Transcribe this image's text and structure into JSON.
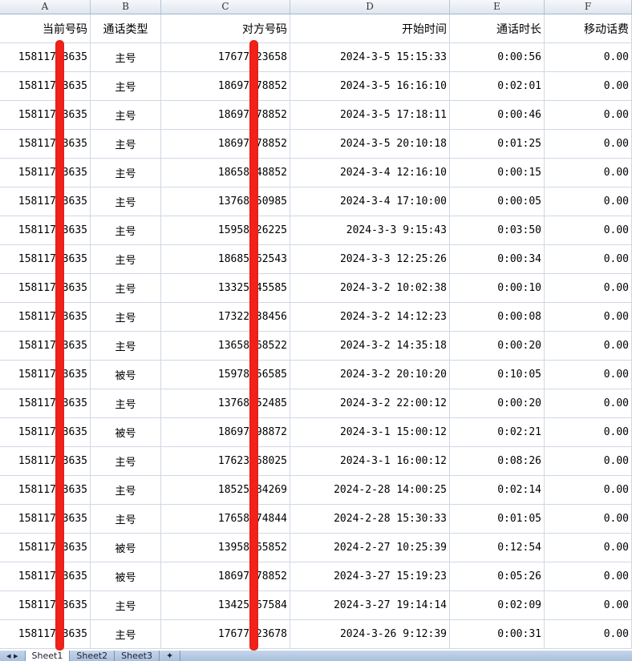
{
  "columns": [
    "A",
    "B",
    "C",
    "D",
    "E",
    "F"
  ],
  "headers": [
    "当前号码",
    "通话类型",
    "对方号码",
    "开始时间",
    "通话时长",
    "移动话费"
  ],
  "rows": [
    [
      "15811753635",
      "主号",
      "17677123658",
      "2024-3-5 15:15:33",
      "0:00:56",
      "0.00"
    ],
    [
      "15811753635",
      "主号",
      "18697378852",
      "2024-3-5 16:16:10",
      "0:02:01",
      "0.00"
    ],
    [
      "15811753635",
      "主号",
      "18697378852",
      "2024-3-5 17:18:11",
      "0:00:46",
      "0.00"
    ],
    [
      "15811753635",
      "主号",
      "18697378852",
      "2024-3-5 20:10:18",
      "0:01:25",
      "0.00"
    ],
    [
      "15811753635",
      "主号",
      "18658548852",
      "2024-3-4 12:16:10",
      "0:00:15",
      "0.00"
    ],
    [
      "15811753635",
      "主号",
      "13768250985",
      "2024-3-4 17:10:00",
      "0:00:05",
      "0.00"
    ],
    [
      "15811753635",
      "主号",
      "15958426225",
      "2024-3-3 9:15:43",
      "0:03:50",
      "0.00"
    ],
    [
      "15811753635",
      "主号",
      "18685562543",
      "2024-3-3 12:25:26",
      "0:00:34",
      "0.00"
    ],
    [
      "15811753635",
      "主号",
      "13325545585",
      "2024-3-2 10:02:38",
      "0:00:10",
      "0.00"
    ],
    [
      "15811753635",
      "主号",
      "17322538456",
      "2024-3-2 14:12:23",
      "0:00:08",
      "0.00"
    ],
    [
      "15811753635",
      "主号",
      "13658568522",
      "2024-3-2 14:35:18",
      "0:00:20",
      "0.00"
    ],
    [
      "15811753635",
      "被号",
      "15978156585",
      "2024-3-2 20:10:20",
      "0:10:05",
      "0.00"
    ],
    [
      "15811753635",
      "主号",
      "13768252485",
      "2024-3-2 22:00:12",
      "0:00:20",
      "0.00"
    ],
    [
      "15811753635",
      "被号",
      "18697898872",
      "2024-3-1 15:00:12",
      "0:02:21",
      "0.00"
    ],
    [
      "15811753635",
      "主号",
      "17623568025",
      "2024-3-1 16:00:12",
      "0:08:26",
      "0.00"
    ],
    [
      "15811753635",
      "主号",
      "18525584269",
      "2024-2-28 14:00:25",
      "0:02:14",
      "0.00"
    ],
    [
      "15811753635",
      "主号",
      "17658474844",
      "2024-2-28 15:30:33",
      "0:01:05",
      "0.00"
    ],
    [
      "15811753635",
      "被号",
      "13958265852",
      "2024-2-27 10:25:39",
      "0:12:54",
      "0.00"
    ],
    [
      "15811753635",
      "被号",
      "18697378852",
      "2024-3-27 15:19:23",
      "0:05:26",
      "0.00"
    ],
    [
      "15811753635",
      "主号",
      "13425567584",
      "2024-3-27 19:14:14",
      "0:02:09",
      "0.00"
    ],
    [
      "15811753635",
      "主号",
      "17677123678",
      "2024-3-26 9:12:39",
      "0:00:31",
      "0.00"
    ]
  ],
  "sheet_tabs": [
    "Sheet1",
    "Sheet2",
    "Sheet3"
  ],
  "active_tab": "Sheet1",
  "redaction_color": "#f0221a"
}
